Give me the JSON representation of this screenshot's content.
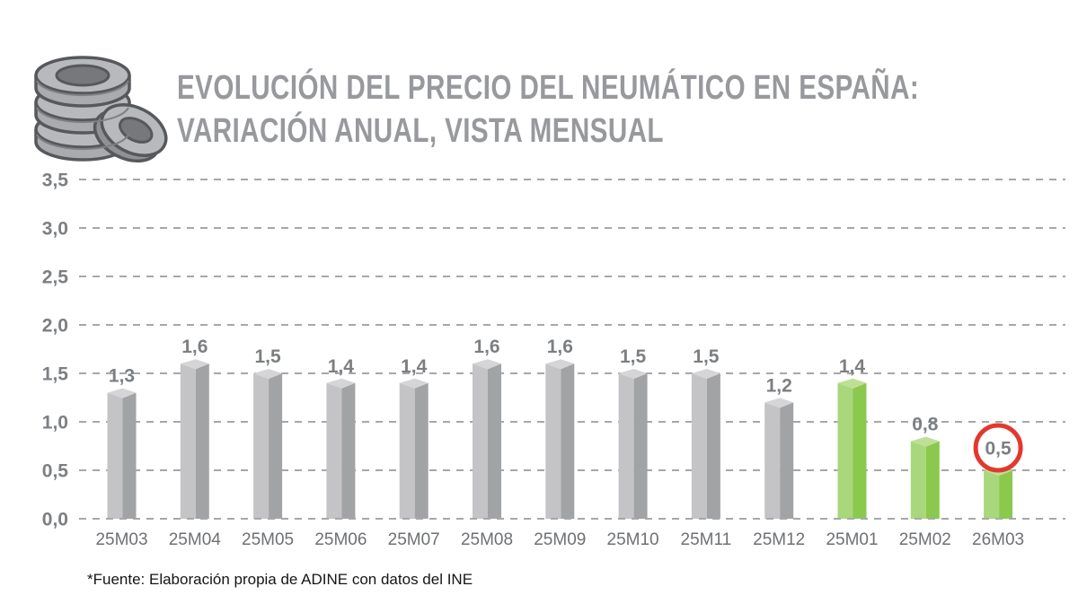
{
  "header": {
    "title_line1": "EVOLUCIÓN DEL PRECIO DEL NEUMÁTICO EN ESPAÑA:",
    "title_line2": "VARIACIÓN ANUAL, VISTA MENSUAL",
    "icon": "tires-stack-icon"
  },
  "footer": {
    "source": "*Fuente: Elaboración propia de ADINE con datos del INE"
  },
  "colors": {
    "title": "#97999c",
    "axis_label": "#7c7f82",
    "value_label": "#7c7f82",
    "x_label": "#6e7073",
    "gridline": "#a5a7aa",
    "bar_gray_left": "#c4c4c6",
    "bar_gray_right": "#a2a3a5",
    "bar_gray_top": "#d5d5d7",
    "bar_green_left": "#a9d77c",
    "bar_green_right": "#8bc94e",
    "bar_green_top": "#bfdf97",
    "highlight_circle": "#e2392e",
    "source_text": "#151515"
  },
  "chart_data": {
    "type": "bar",
    "title": "Evolución del precio del neumático en España: variación anual, vista mensual",
    "categories": [
      "25M03",
      "25M04",
      "25M05",
      "25M06",
      "25M07",
      "25M08",
      "25M09",
      "25M10",
      "25M11",
      "25M12",
      "25M01",
      "25M02",
      "26M03"
    ],
    "values": [
      1.3,
      1.6,
      1.5,
      1.4,
      1.4,
      1.6,
      1.6,
      1.5,
      1.5,
      1.2,
      1.4,
      0.8,
      0.5
    ],
    "value_labels": [
      "1,3",
      "1,6",
      "1,5",
      "1,4",
      "1,4",
      "1,6",
      "1,6",
      "1,5",
      "1,5",
      "1,2",
      "1,4",
      "0,8",
      "0,5"
    ],
    "green_indices": [
      10,
      11,
      12
    ],
    "circled_index": 12,
    "ylim": [
      0,
      3.5
    ],
    "ytick_step": 0.5,
    "ytick_labels": [
      "0,0",
      "0,5",
      "1,0",
      "1,5",
      "2,0",
      "2,5",
      "3,0",
      "3,5"
    ],
    "grid": "dashed-horizontal",
    "legend": null,
    "xlabel": "",
    "ylabel": ""
  }
}
